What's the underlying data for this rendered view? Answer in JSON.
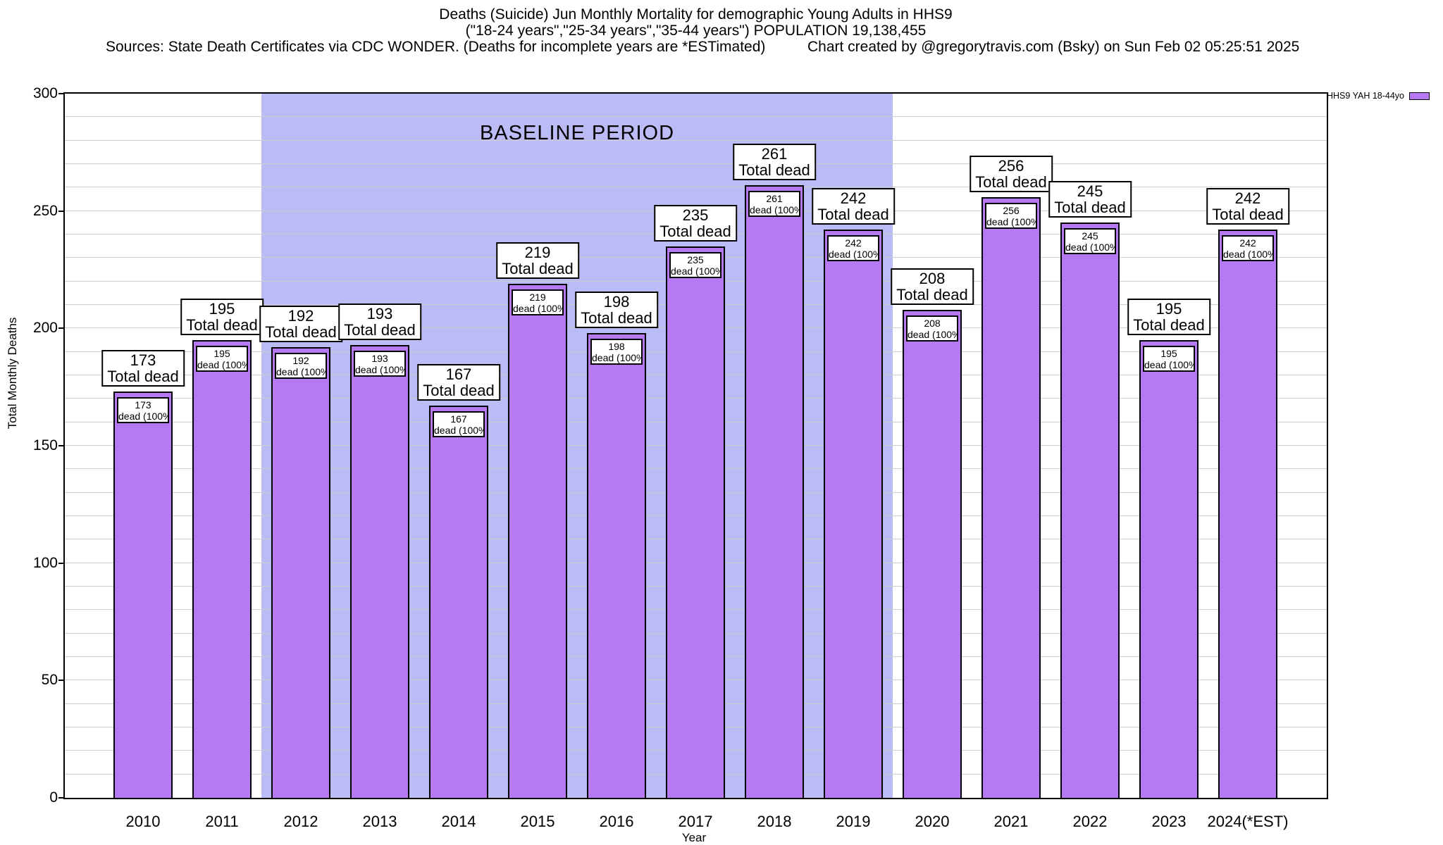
{
  "header": {
    "title_line1": "Deaths (Suicide) Jun Monthly Mortality for demographic Young Adults in HHS9",
    "title_line2": "(\"18-24 years\",\"25-34 years\",\"35-44 years\") POPULATION 19,138,455",
    "sources_line": "Sources: State Death Certificates via CDC WONDER. (Deaths for incomplete years are *ESTimated)",
    "credit_line": "Chart created by @gregorytravis.com (Bsky) on Sun Feb 02 05:25:51 2025"
  },
  "chart_data": {
    "type": "bar",
    "categories": [
      "2010",
      "2011",
      "2012",
      "2013",
      "2014",
      "2015",
      "2016",
      "2017",
      "2018",
      "2019",
      "2020",
      "2021",
      "2022",
      "2023",
      "2024(*EST)"
    ],
    "values": [
      173,
      195,
      192,
      193,
      167,
      219,
      198,
      235,
      261,
      242,
      208,
      256,
      245,
      195,
      242
    ],
    "bar_callout_suffix": "Total dead",
    "bar_inner_suffix": "dead (100%)",
    "xlabel": "Year",
    "ylabel": "Total Monthly Deaths",
    "ylim": [
      0,
      300
    ],
    "ytick_major_step": 50,
    "ytick_minor_step": 10,
    "grid": true,
    "legend_position": "top-right-outside",
    "legend": [
      {
        "label": "HHS9 YAH 18-44yo"
      }
    ],
    "baseline_region": {
      "label": "BASELINE PERIOD",
      "from_category": "2012",
      "to_category": "2019"
    },
    "colors": {
      "bar_fill": "#b779f1",
      "bar_border": "#000000",
      "baseline_band": "#bbbcf6",
      "gridline": "#cccccc",
      "label_box_bg": "#ffffff"
    }
  }
}
